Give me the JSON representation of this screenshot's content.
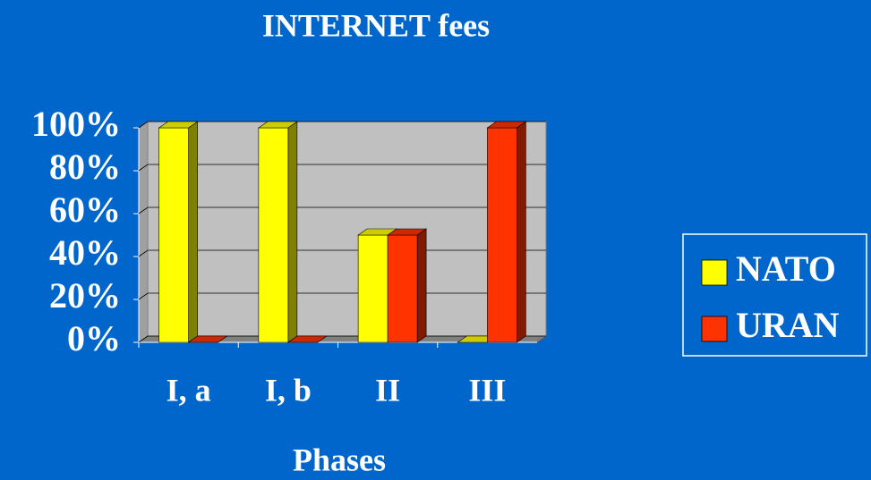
{
  "chart_data": {
    "type": "bar3d",
    "title": "INTERNET fees",
    "x_label": "Phases",
    "categories": [
      "I, a",
      "I, b",
      "II",
      "III"
    ],
    "series": [
      {
        "name": "NATO",
        "color": "#ffff00",
        "values": [
          100,
          100,
          50,
          0
        ]
      },
      {
        "name": "URAN",
        "color": "#ff3300",
        "values": [
          0,
          0,
          50,
          100
        ]
      }
    ],
    "ylim": [
      0,
      100
    ],
    "yticks": [
      {
        "value": 0,
        "label": "0%"
      },
      {
        "value": 20,
        "label": "20%"
      },
      {
        "value": 40,
        "label": "40%"
      },
      {
        "value": 60,
        "label": "60%"
      },
      {
        "value": 80,
        "label": "80%"
      },
      {
        "value": 100,
        "label": "100%"
      }
    ],
    "grid": true,
    "legend": "right"
  }
}
